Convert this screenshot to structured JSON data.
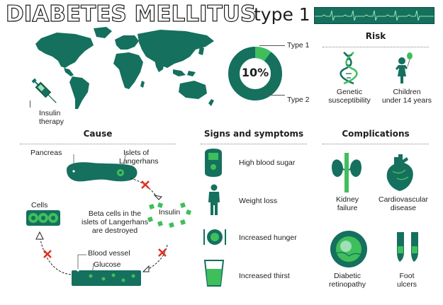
{
  "header": {
    "title": "DIABETES MELLITUS",
    "subtitle": "type 1"
  },
  "colors": {
    "primary": "#15705e",
    "accent": "#3fbf5c",
    "dark": "#1e1e1e",
    "cross": "#e0301e"
  },
  "map": {
    "therapy_label_line1": "Insulin",
    "therapy_label_line2": "therapy"
  },
  "donut": {
    "percent_label": "10%",
    "type1_fraction": 0.1,
    "type1_label": "Type 1",
    "type2_label": "Type 2"
  },
  "risk": {
    "heading": "Risk",
    "items": [
      {
        "icon": "dna-icon",
        "line1": "Genetic",
        "line2": "susceptibility"
      },
      {
        "icon": "child-icon",
        "line1": "Children",
        "line2": "under 14 years"
      }
    ]
  },
  "cause": {
    "heading": "Cause",
    "pancreas": "Pancreas",
    "islets_line1": "Islets of",
    "islets_line2": "Langerhans",
    "insulin": "Insulin",
    "cells": "Cells",
    "beta_line1": "Beta cells in the",
    "beta_line2": "islets of Langerhans",
    "beta_line3": "are destroyed",
    "blood_vessel": "Blood vessel",
    "glucose": "Glucose"
  },
  "symptoms": {
    "heading": "Signs and symptoms",
    "items": [
      {
        "icon": "glucometer-icon",
        "label": "High blood sugar"
      },
      {
        "icon": "person-icon",
        "label": "Weight loss"
      },
      {
        "icon": "plate-icon",
        "label": "Increased hunger"
      },
      {
        "icon": "glass-icon",
        "label": "Increased thirst"
      }
    ]
  },
  "complications": {
    "heading": "Complications",
    "items": [
      {
        "icon": "kidney-icon",
        "line1": "Kidney",
        "line2": "failure"
      },
      {
        "icon": "heart-icon",
        "line1": "Cardiovascular",
        "line2": "disease"
      },
      {
        "icon": "eye-icon",
        "line1": "Diabetic",
        "line2": "retinopathy"
      },
      {
        "icon": "foot-icon",
        "line1": "Foot",
        "line2": "ulcers"
      }
    ]
  }
}
